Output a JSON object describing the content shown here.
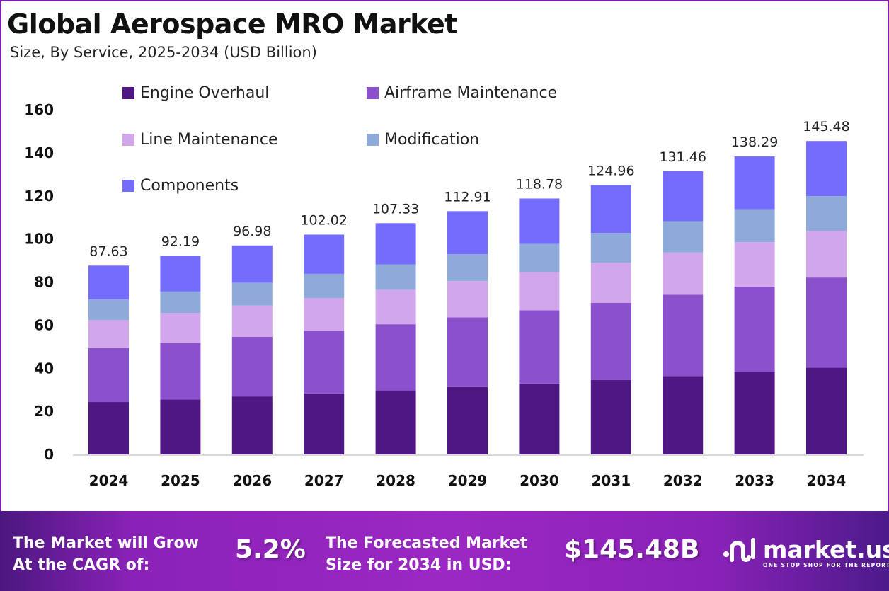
{
  "header": {
    "title": "Global Aerospace MRO Market",
    "subtitle": "Size, By Service, 2025-2034 (USD Billion)"
  },
  "chart_data": {
    "type": "bar",
    "stacked": true,
    "title": "Global Aerospace MRO Market",
    "subtitle": "Size, By Service, 2025-2034 (USD Billion)",
    "xlabel": "",
    "ylabel": "",
    "ylim": [
      0,
      160
    ],
    "yticks": [
      0,
      20,
      40,
      60,
      80,
      100,
      120,
      140,
      160
    ],
    "grid": false,
    "legend_position": "top-left",
    "categories": [
      "2024",
      "2025",
      "2026",
      "2027",
      "2028",
      "2029",
      "2030",
      "2031",
      "2032",
      "2033",
      "2034"
    ],
    "totals": [
      87.63,
      92.19,
      96.98,
      102.02,
      107.33,
      112.91,
      118.78,
      124.96,
      131.46,
      138.29,
      145.48
    ],
    "total_labels": [
      "87.63",
      "92.19",
      "96.98",
      "102.02",
      "107.33",
      "112.91",
      "118.78",
      "124.96",
      "131.46",
      "138.29",
      "145.48"
    ],
    "series": [
      {
        "name": "Engine Overhaul",
        "color": "#4f1783",
        "values": [
          24.3,
          25.5,
          26.9,
          28.3,
          29.7,
          31.3,
          32.9,
          34.6,
          36.4,
          38.3,
          40.3
        ]
      },
      {
        "name": "Airframe Maintenance",
        "color": "#8b50cc",
        "values": [
          25.0,
          26.3,
          27.7,
          29.1,
          30.7,
          32.3,
          34.0,
          35.8,
          37.7,
          39.6,
          41.8
        ]
      },
      {
        "name": "Line Maintenance",
        "color": "#d2a6ea",
        "values": [
          13.1,
          13.8,
          14.5,
          15.2,
          16.0,
          16.8,
          17.7,
          18.6,
          19.6,
          20.6,
          21.7
        ]
      },
      {
        "name": "Modification",
        "color": "#8eaadb",
        "values": [
          9.5,
          10.0,
          10.6,
          11.2,
          11.8,
          12.5,
          13.1,
          13.8,
          14.5,
          15.3,
          16.1
        ]
      },
      {
        "name": "Components",
        "color": "#746cfd",
        "values": [
          15.73,
          16.59,
          17.28,
          18.22,
          19.13,
          20.01,
          21.08,
          22.16,
          23.26,
          24.49,
          25.58
        ]
      }
    ]
  },
  "footer": {
    "cagr_label_line1": "The Market will Grow",
    "cagr_label_line2": "At the CAGR of:",
    "cagr_value": "5.2%",
    "forecast_label_line1": "The Forecasted Market",
    "forecast_label_line2": "Size for 2034 in USD:",
    "forecast_value": "$145.48B",
    "logo_icon": "market-us-logo-icon",
    "logo_name": "market.us",
    "logo_tagline": "ONE STOP SHOP FOR THE REPORTS"
  }
}
